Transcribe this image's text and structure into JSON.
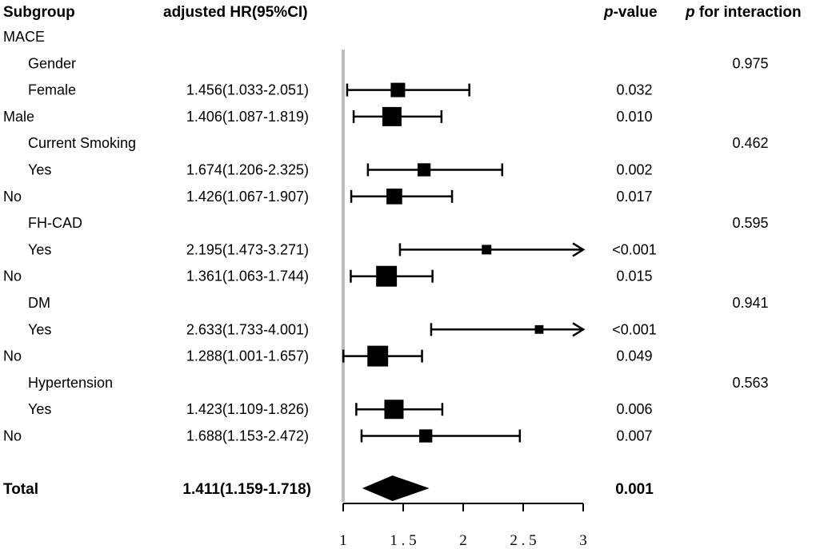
{
  "header": {
    "subgroup": "Subgroup",
    "hr": "adjusted HR(95%CI)",
    "p_italic": "p",
    "p_rest": "-value",
    "pint_italic": "p",
    "pint_rest": " for interaction"
  },
  "colors": {
    "marker": "#000000",
    "reference_line": "#bdbdbd"
  },
  "chart_data": {
    "type": "forest",
    "x_scale": "linear",
    "xlim": [
      1,
      3
    ],
    "x_ticks": [
      "1",
      "1.5",
      "2",
      "2.5",
      "3"
    ],
    "reference_line": 1,
    "rows": [
      {
        "label": "MACE",
        "indent": false
      },
      {
        "label": "Gender",
        "indent": true,
        "p_interaction": "0.975"
      },
      {
        "label": "Female",
        "indent": true,
        "hr_text": "1.456(1.033-2.051)",
        "hr": 1.456,
        "lo": 1.033,
        "hi": 2.051,
        "p": "0.032",
        "weight": 0.75
      },
      {
        "label": "Male",
        "indent": false,
        "hr_text": "1.406(1.087-1.819)",
        "hr": 1.406,
        "lo": 1.087,
        "hi": 1.819,
        "p": "0.010",
        "weight": 1.0
      },
      {
        "label": "Current Smoking",
        "indent": true,
        "p_interaction": "0.462"
      },
      {
        "label": "Yes",
        "indent": true,
        "hr_text": "1.674(1.206-2.325)",
        "hr": 1.674,
        "lo": 1.206,
        "hi": 2.325,
        "p": "0.002",
        "weight": 0.68
      },
      {
        "label": "No",
        "indent": false,
        "hr_text": "1.426(1.067-1.907)",
        "hr": 1.426,
        "lo": 1.067,
        "hi": 1.907,
        "p": "0.017",
        "weight": 0.82
      },
      {
        "label": "FH-CAD",
        "indent": true,
        "p_interaction": "0.595"
      },
      {
        "label": "Yes",
        "indent": true,
        "hr_text": "2.195(1.473-3.271)",
        "hr": 2.195,
        "lo": 1.473,
        "hi": 3.271,
        "p": "<0.001",
        "weight": 0.5,
        "arrow": true
      },
      {
        "label": "No",
        "indent": false,
        "hr_text": "1.361(1.063-1.744)",
        "hr": 1.361,
        "lo": 1.063,
        "hi": 1.744,
        "p": "0.015",
        "weight": 1.08
      },
      {
        "label": "DM",
        "indent": true,
        "p_interaction": "0.941"
      },
      {
        "label": "Yes",
        "indent": true,
        "hr_text": "2.633(1.733-4.001)",
        "hr": 2.633,
        "lo": 1.733,
        "hi": 4.001,
        "p": "<0.001",
        "weight": 0.45,
        "arrow": true
      },
      {
        "label": "No",
        "indent": false,
        "hr_text": "1.288(1.001-1.657)",
        "hr": 1.288,
        "lo": 1.001,
        "hi": 1.657,
        "p": "0.049",
        "weight": 1.08
      },
      {
        "label": "Hypertension",
        "indent": true,
        "p_interaction": "0.563"
      },
      {
        "label": "Yes",
        "indent": true,
        "hr_text": "1.423(1.109-1.826)",
        "hr": 1.423,
        "lo": 1.109,
        "hi": 1.826,
        "p": "0.006",
        "weight": 1.0
      },
      {
        "label": "No",
        "indent": false,
        "hr_text": "1.688(1.153-2.472)",
        "hr": 1.688,
        "lo": 1.153,
        "hi": 2.472,
        "p": "0.007",
        "weight": 0.68
      }
    ],
    "total": {
      "label": "Total",
      "hr_text": "1.411(1.159-1.718)",
      "hr": 1.411,
      "lo": 1.159,
      "hi": 1.718,
      "p": "0.001"
    }
  }
}
